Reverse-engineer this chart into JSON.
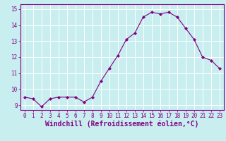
{
  "x": [
    0,
    1,
    2,
    3,
    4,
    5,
    6,
    7,
    8,
    9,
    10,
    11,
    12,
    13,
    14,
    15,
    16,
    17,
    18,
    19,
    20,
    21,
    22,
    23
  ],
  "y": [
    9.5,
    9.4,
    8.9,
    9.4,
    9.5,
    9.5,
    9.5,
    9.2,
    9.5,
    10.5,
    11.3,
    12.1,
    13.1,
    13.5,
    14.5,
    14.8,
    14.7,
    14.8,
    14.5,
    13.8,
    13.1,
    12.0,
    11.8,
    11.3
  ],
  "line_color": "#800080",
  "marker_color": "#800080",
  "bg_color": "#c8eef0",
  "grid_color": "#ffffff",
  "xlabel": "Windchill (Refroidissement éolien,°C)",
  "xlim": [
    -0.5,
    23.5
  ],
  "ylim": [
    8.7,
    15.3
  ],
  "yticks": [
    9,
    10,
    11,
    12,
    13,
    14,
    15
  ],
  "xticks": [
    0,
    1,
    2,
    3,
    4,
    5,
    6,
    7,
    8,
    9,
    10,
    11,
    12,
    13,
    14,
    15,
    16,
    17,
    18,
    19,
    20,
    21,
    22,
    23
  ],
  "tick_label_fontsize": 5.5,
  "xlabel_fontsize": 7.0
}
